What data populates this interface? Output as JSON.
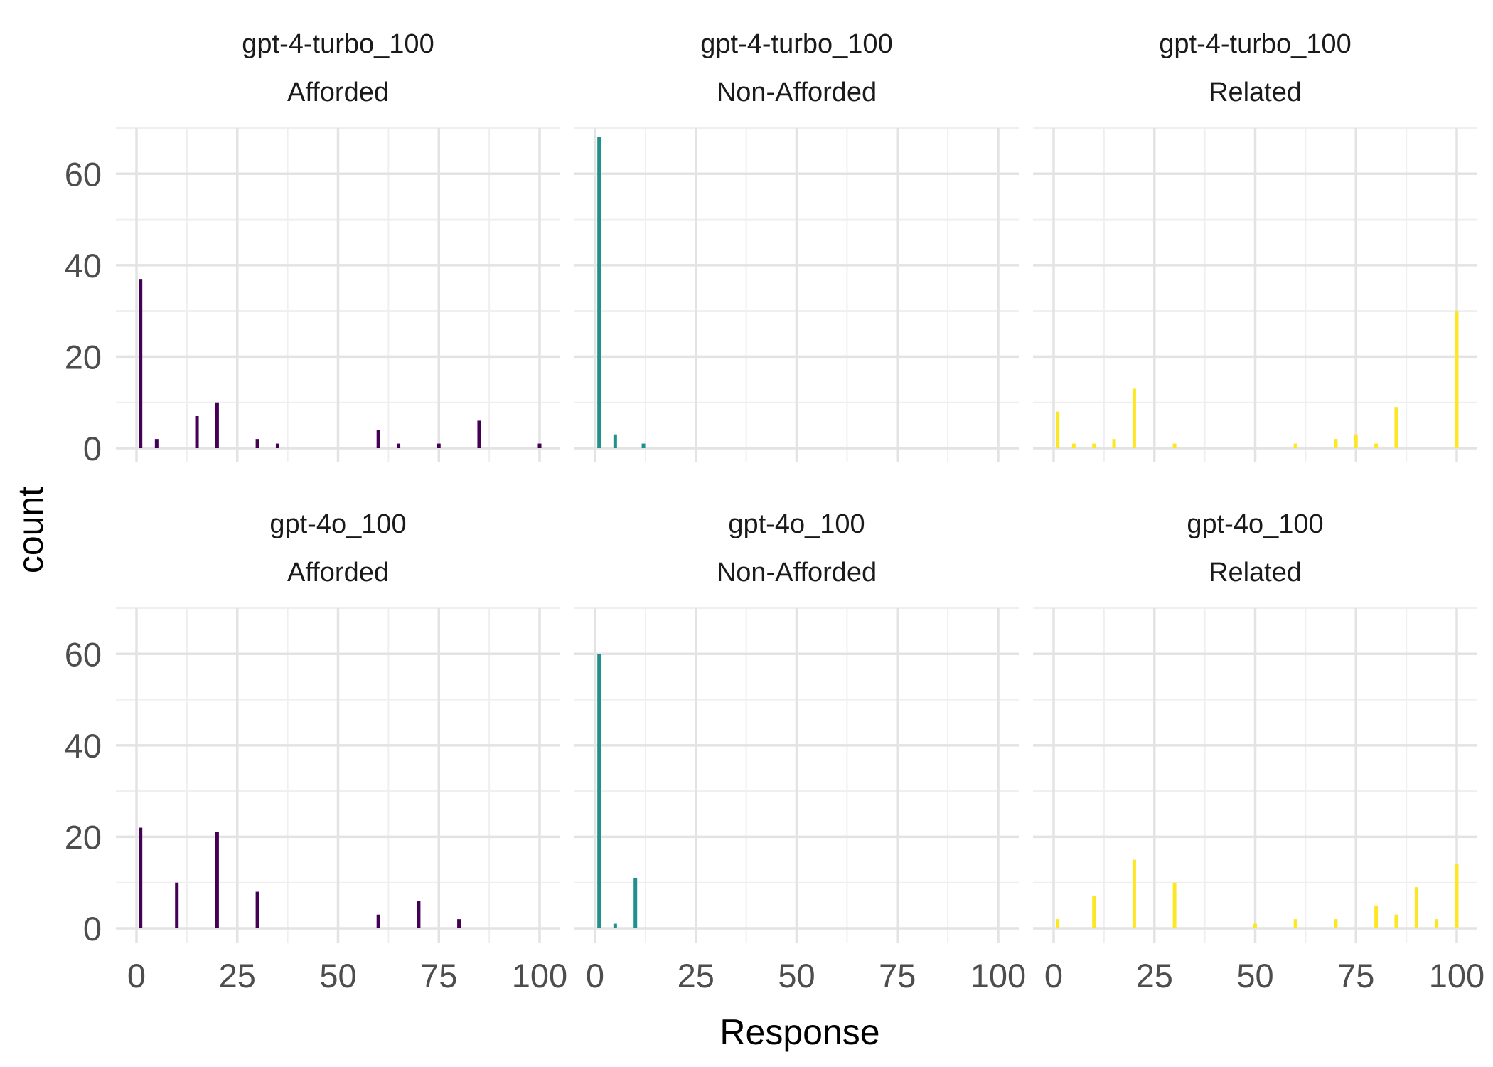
{
  "chart_data": {
    "type": "bar",
    "xlabel": "Response",
    "ylabel": "count",
    "xlim": [
      0,
      100
    ],
    "ylim": [
      0,
      70
    ],
    "x_ticks": [
      0,
      25,
      50,
      75,
      100
    ],
    "y_ticks": [
      0,
      20,
      40,
      60
    ],
    "grid": true,
    "legend": "none",
    "colors": {
      "Afforded": "#440154",
      "Non-Afforded": "#21908C",
      "Related": "#FDE725"
    },
    "panels": [
      {
        "model": "gpt-4-turbo_100",
        "condition": "Afforded",
        "x": [
          1,
          5,
          15,
          20,
          30,
          35,
          60,
          65,
          75,
          85,
          100
        ],
        "counts": [
          37,
          2,
          7,
          10,
          2,
          1,
          4,
          1,
          1,
          6,
          1
        ]
      },
      {
        "model": "gpt-4-turbo_100",
        "condition": "Non-Afforded",
        "x": [
          1,
          5,
          12
        ],
        "counts": [
          68,
          3,
          1
        ]
      },
      {
        "model": "gpt-4-turbo_100",
        "condition": "Related",
        "x": [
          1,
          5,
          10,
          15,
          20,
          30,
          60,
          70,
          75,
          80,
          85,
          100
        ],
        "counts": [
          8,
          1,
          1,
          2,
          13,
          1,
          1,
          2,
          3,
          1,
          9,
          30
        ]
      },
      {
        "model": "gpt-4o_100",
        "condition": "Afforded",
        "x": [
          1,
          10,
          20,
          30,
          60,
          70,
          80
        ],
        "counts": [
          22,
          10,
          21,
          8,
          3,
          6,
          2
        ]
      },
      {
        "model": "gpt-4o_100",
        "condition": "Non-Afforded",
        "x": [
          1,
          5,
          10
        ],
        "counts": [
          60,
          1,
          11
        ]
      },
      {
        "model": "gpt-4o_100",
        "condition": "Related",
        "x": [
          1,
          10,
          20,
          30,
          50,
          60,
          70,
          80,
          85,
          90,
          95,
          100
        ],
        "counts": [
          2,
          7,
          15,
          10,
          1,
          2,
          2,
          5,
          3,
          9,
          2,
          14
        ]
      }
    ]
  }
}
